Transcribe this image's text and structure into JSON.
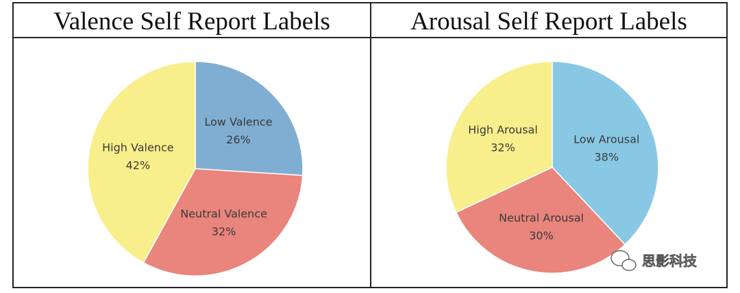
{
  "chart_data": [
    {
      "type": "pie",
      "title": "Valence Self Report Labels",
      "categories": [
        "Low Valence",
        "Neutral Valence",
        "High Valence"
      ],
      "values": [
        26,
        32,
        42
      ],
      "value_labels": [
        "26%",
        "32%",
        "42%"
      ],
      "colors": [
        "#80aed3",
        "#e9857c",
        "#f8ef8c"
      ]
    },
    {
      "type": "pie",
      "title": "Arousal Self Report Labels",
      "categories": [
        "Low Arousal",
        "Neutral Arousal",
        "High Arousal"
      ],
      "values": [
        38,
        30,
        32
      ],
      "value_labels": [
        "38%",
        "30%",
        "32%"
      ],
      "colors": [
        "#89c8e4",
        "#e9857c",
        "#f8ef8c"
      ]
    }
  ],
  "watermark": "思影科技"
}
